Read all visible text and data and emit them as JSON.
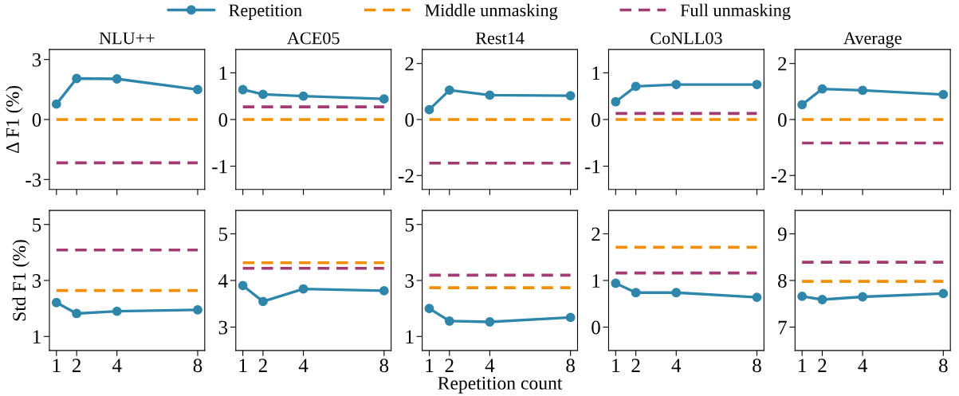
{
  "chart_data": [
    {
      "type": "line",
      "title": "NLU++",
      "ylabel": "Δ F1 (%)",
      "x": [
        1,
        2,
        4,
        8
      ],
      "xlim": [
        0.65,
        8.35
      ],
      "xticks": [
        1,
        2,
        4,
        8
      ],
      "ylim": [
        -3.5,
        3.5
      ],
      "yticks": [
        {
          "value": -3,
          "label": "-3"
        },
        0,
        3
      ],
      "tick_labels": "y",
      "legend": "top",
      "series": [
        {
          "name": "Repetition",
          "color": "#2e86ab",
          "marker": "circle",
          "line_style": "solid",
          "values": [
            0.77,
            2.05,
            2.03,
            1.5
          ]
        },
        {
          "name": "Middle unmasking",
          "color": "#f18f01",
          "marker": "none",
          "line_style": "dashed",
          "values": [
            0,
            0,
            0,
            0
          ]
        },
        {
          "name": "Full unmasking",
          "color": "#a23b72",
          "marker": "none",
          "line_style": "dashed",
          "values": [
            -2.17,
            -2.17,
            -2.17,
            -2.17
          ]
        }
      ]
    },
    {
      "type": "line",
      "title": "ACE05",
      "x": [
        1,
        2,
        4,
        8
      ],
      "xlim": [
        0.65,
        8.35
      ],
      "xticks": [
        1,
        2,
        4,
        8
      ],
      "ylim": [
        -1.5,
        1.5
      ],
      "yticks": [
        {
          "value": -1,
          "label": "-1"
        },
        0,
        1
      ],
      "tick_labels": "y",
      "series": [
        {
          "color": "#2e86ab",
          "marker": "circle",
          "line_style": "solid",
          "values": [
            0.64,
            0.54,
            0.5,
            0.44
          ]
        },
        {
          "color": "#f18f01",
          "marker": "none",
          "line_style": "dashed",
          "values": [
            0,
            0,
            0,
            0
          ]
        },
        {
          "color": "#a23b72",
          "marker": "none",
          "line_style": "dashed",
          "values": [
            0.27,
            0.27,
            0.27,
            0.27
          ]
        }
      ]
    },
    {
      "type": "line",
      "title": "Rest14",
      "x": [
        1,
        2,
        4,
        8
      ],
      "xlim": [
        0.65,
        8.35
      ],
      "xticks": [
        1,
        2,
        4,
        8
      ],
      "ylim": [
        -2.5,
        2.5
      ],
      "yticks": [
        {
          "value": -2,
          "label": "-2"
        },
        0,
        2
      ],
      "tick_labels": "y",
      "series": [
        {
          "color": "#2e86ab",
          "marker": "circle",
          "line_style": "solid",
          "values": [
            0.35,
            1.05,
            0.87,
            0.85
          ]
        },
        {
          "color": "#f18f01",
          "marker": "none",
          "line_style": "dashed",
          "values": [
            0,
            0,
            0,
            0
          ]
        },
        {
          "color": "#a23b72",
          "marker": "none",
          "line_style": "dashed",
          "values": [
            -1.56,
            -1.56,
            -1.56,
            -1.56
          ]
        }
      ]
    },
    {
      "type": "line",
      "title": "CoNLL03",
      "x": [
        1,
        2,
        4,
        8
      ],
      "xlim": [
        0.65,
        8.35
      ],
      "xticks": [
        1,
        2,
        4,
        8
      ],
      "ylim": [
        -1.5,
        1.5
      ],
      "yticks": [
        {
          "value": -1,
          "label": "-1"
        },
        0,
        1
      ],
      "tick_labels": "y",
      "series": [
        {
          "color": "#2e86ab",
          "marker": "circle",
          "line_style": "solid",
          "values": [
            0.38,
            0.71,
            0.75,
            0.75
          ]
        },
        {
          "color": "#f18f01",
          "marker": "none",
          "line_style": "dashed",
          "values": [
            0,
            0,
            0,
            0
          ]
        },
        {
          "color": "#a23b72",
          "marker": "none",
          "line_style": "dashed",
          "values": [
            0.13,
            0.13,
            0.13,
            0.13
          ]
        }
      ]
    },
    {
      "type": "line",
      "title": "Average",
      "x": [
        1,
        2,
        4,
        8
      ],
      "xlim": [
        0.65,
        8.35
      ],
      "xticks": [
        1,
        2,
        4,
        8
      ],
      "ylim": [
        -2.5,
        2.5
      ],
      "yticks": [
        {
          "value": -2,
          "label": "-2"
        },
        0,
        2
      ],
      "tick_labels": "y",
      "series": [
        {
          "color": "#2e86ab",
          "marker": "circle",
          "line_style": "solid",
          "values": [
            0.53,
            1.09,
            1.04,
            0.89
          ]
        },
        {
          "color": "#f18f01",
          "marker": "none",
          "line_style": "dashed",
          "values": [
            0,
            0,
            0,
            0
          ]
        },
        {
          "color": "#a23b72",
          "marker": "none",
          "line_style": "dashed",
          "values": [
            -0.84,
            -0.84,
            -0.84,
            -0.84
          ]
        }
      ]
    },
    {
      "type": "line",
      "ylabel": "Std F1 (%)",
      "x": [
        1,
        2,
        4,
        8
      ],
      "xlim": [
        0.65,
        8.35
      ],
      "xticks": [
        1,
        2,
        4,
        8
      ],
      "ylim": [
        0.5,
        5.5
      ],
      "yticks": [
        1,
        3,
        5
      ],
      "series": [
        {
          "color": "#2e86ab",
          "marker": "circle",
          "line_style": "solid",
          "values": [
            2.21,
            1.82,
            1.9,
            1.95
          ]
        },
        {
          "color": "#f18f01",
          "marker": "none",
          "line_style": "dashed",
          "values": [
            2.64,
            2.64,
            2.64,
            2.64
          ]
        },
        {
          "color": "#a23b72",
          "marker": "none",
          "line_style": "dashed",
          "values": [
            4.09,
            4.09,
            4.09,
            4.09
          ]
        }
      ]
    },
    {
      "type": "line",
      "x": [
        1,
        2,
        4,
        8
      ],
      "xlim": [
        0.65,
        8.35
      ],
      "xticks": [
        1,
        2,
        4,
        8
      ],
      "ylim": [
        2.5,
        5.5
      ],
      "yticks": [
        3,
        4,
        5
      ],
      "series": [
        {
          "color": "#2e86ab",
          "marker": "circle",
          "line_style": "solid",
          "values": [
            3.89,
            3.55,
            3.82,
            3.78
          ]
        },
        {
          "color": "#f18f01",
          "marker": "none",
          "line_style": "dashed",
          "values": [
            4.38,
            4.38,
            4.38,
            4.38
          ]
        },
        {
          "color": "#a23b72",
          "marker": "none",
          "line_style": "dashed",
          "values": [
            4.26,
            4.26,
            4.26,
            4.26
          ]
        }
      ]
    },
    {
      "type": "line",
      "xlabel": "Repetition count",
      "x": [
        1,
        2,
        4,
        8
      ],
      "xlim": [
        0.65,
        8.35
      ],
      "xticks": [
        1,
        2,
        4,
        8
      ],
      "ylim": [
        0.5,
        5.5
      ],
      "yticks": [
        1,
        3,
        5
      ],
      "series": [
        {
          "color": "#2e86ab",
          "marker": "circle",
          "line_style": "solid",
          "values": [
            2.0,
            1.55,
            1.52,
            1.68
          ]
        },
        {
          "color": "#f18f01",
          "marker": "none",
          "line_style": "dashed",
          "values": [
            2.74,
            2.74,
            2.74,
            2.74
          ]
        },
        {
          "color": "#a23b72",
          "marker": "none",
          "line_style": "dashed",
          "values": [
            3.19,
            3.19,
            3.19,
            3.19
          ]
        }
      ]
    },
    {
      "type": "line",
      "x": [
        1,
        2,
        4,
        8
      ],
      "xlim": [
        0.65,
        8.35
      ],
      "xticks": [
        1,
        2,
        4,
        8
      ],
      "ylim": [
        -0.5,
        2.5
      ],
      "yticks": [
        0,
        1,
        2
      ],
      "series": [
        {
          "color": "#2e86ab",
          "marker": "circle",
          "line_style": "solid",
          "values": [
            0.94,
            0.74,
            0.74,
            0.64
          ]
        },
        {
          "color": "#f18f01",
          "marker": "none",
          "line_style": "dashed",
          "values": [
            1.71,
            1.71,
            1.71,
            1.71
          ]
        },
        {
          "color": "#a23b72",
          "marker": "none",
          "line_style": "dashed",
          "values": [
            1.16,
            1.16,
            1.16,
            1.16
          ]
        }
      ]
    },
    {
      "type": "line",
      "x": [
        1,
        2,
        4,
        8
      ],
      "xlim": [
        0.65,
        8.35
      ],
      "xticks": [
        1,
        2,
        4,
        8
      ],
      "ylim": [
        6.5,
        9.5
      ],
      "yticks": [
        7,
        8,
        9
      ],
      "series": [
        {
          "color": "#2e86ab",
          "marker": "circle",
          "line_style": "solid",
          "values": [
            7.66,
            7.59,
            7.65,
            7.72
          ]
        },
        {
          "color": "#f18f01",
          "marker": "none",
          "line_style": "dashed",
          "values": [
            7.98,
            7.98,
            7.98,
            7.98
          ]
        },
        {
          "color": "#a23b72",
          "marker": "none",
          "line_style": "dashed",
          "values": [
            8.39,
            8.39,
            8.39,
            8.39
          ]
        }
      ]
    }
  ]
}
